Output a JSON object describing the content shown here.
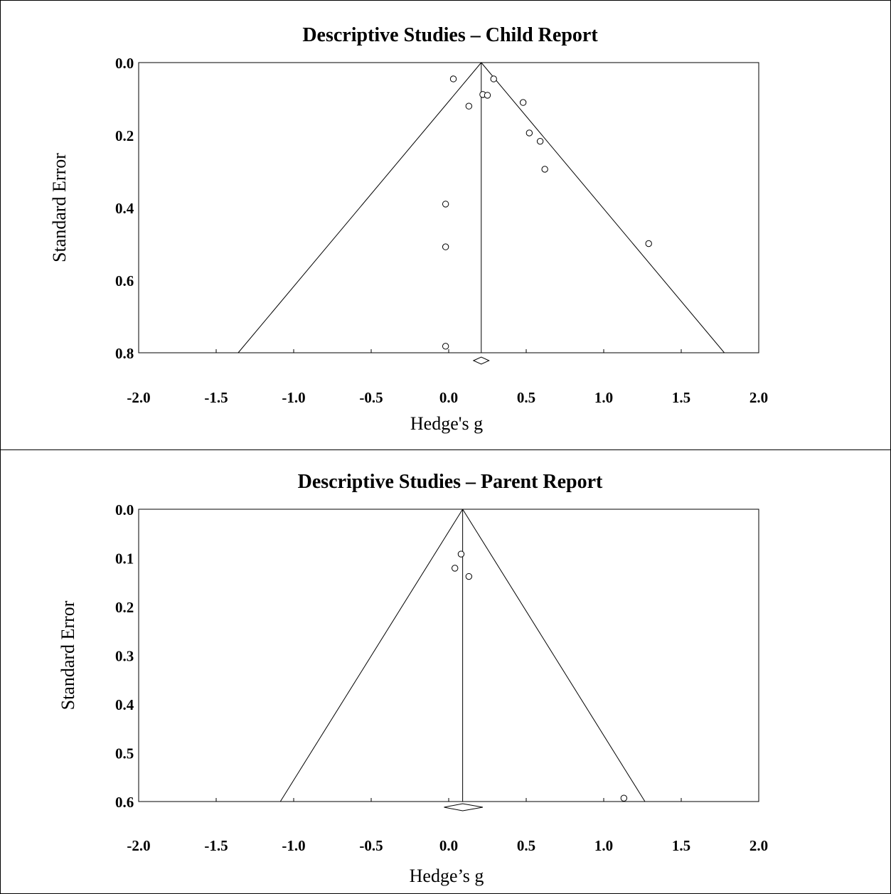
{
  "chart_data": [
    {
      "type": "scatter",
      "title": "Descriptive Studies – Child Report",
      "xlabel": "Hedge's g",
      "ylabel": "Standard Error",
      "xlim": [
        -2.0,
        2.0
      ],
      "ylim": [
        0.0,
        0.8
      ],
      "y_reversed": true,
      "x_ticks": [
        "-2.0",
        "-1.5",
        "-1.0",
        "-0.5",
        "0.0",
        "0.5",
        "1.0",
        "1.5",
        "2.0"
      ],
      "y_ticks": [
        "0.0",
        "0.2",
        "0.4",
        "0.6",
        "0.8"
      ],
      "pooled_effect": 0.21,
      "diamond": [
        0.16,
        0.26
      ],
      "funnel": "95% pseudo-confidence limits",
      "grid": false,
      "points": [
        {
          "x": 0.03,
          "y": 0.045
        },
        {
          "x": 0.29,
          "y": 0.045
        },
        {
          "x": 0.22,
          "y": 0.088
        },
        {
          "x": 0.25,
          "y": 0.09
        },
        {
          "x": 0.13,
          "y": 0.12
        },
        {
          "x": 0.48,
          "y": 0.11
        },
        {
          "x": 0.52,
          "y": 0.194
        },
        {
          "x": 0.59,
          "y": 0.217
        },
        {
          "x": 0.62,
          "y": 0.294
        },
        {
          "x": -0.02,
          "y": 0.39
        },
        {
          "x": -0.02,
          "y": 0.508
        },
        {
          "x": 1.29,
          "y": 0.499
        },
        {
          "x": -0.02,
          "y": 0.782
        }
      ]
    },
    {
      "type": "scatter",
      "title": "Descriptive Studies – Parent Report",
      "xlabel": "Hedge’s g",
      "ylabel": "Standard Error",
      "xlim": [
        -2.0,
        2.0
      ],
      "ylim": [
        0.0,
        0.6
      ],
      "y_reversed": true,
      "x_ticks": [
        "-2.0",
        "-1.5",
        "-1.0",
        "-0.5",
        "0.0",
        "0.5",
        "1.0",
        "1.5",
        "2.0"
      ],
      "y_ticks": [
        "0.0",
        "0.1",
        "0.2",
        "0.3",
        "0.4",
        "0.5",
        "0.6"
      ],
      "pooled_effect": 0.09,
      "diamond": [
        -0.03,
        0.22
      ],
      "funnel": "95% pseudo-confidence limits",
      "grid": false,
      "points": [
        {
          "x": 0.08,
          "y": 0.092
        },
        {
          "x": 0.04,
          "y": 0.121
        },
        {
          "x": 0.13,
          "y": 0.138
        },
        {
          "x": 1.13,
          "y": 0.593
        }
      ]
    }
  ]
}
